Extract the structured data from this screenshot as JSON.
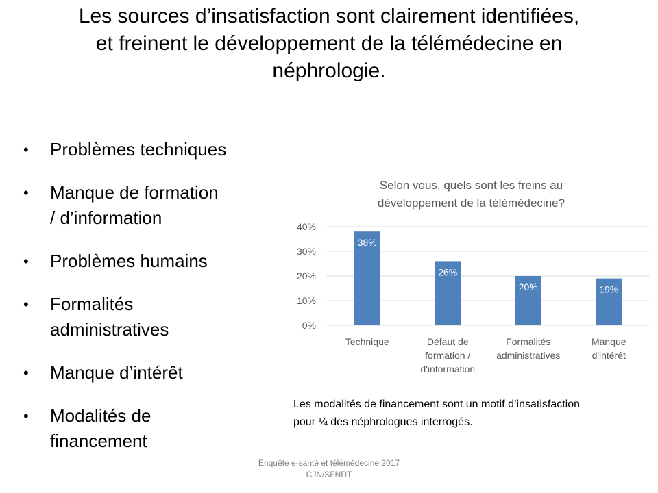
{
  "slide": {
    "title_lines": [
      "Les sources d’insatisfaction sont clairement identifiées,",
      "et freinent le développement de la télémédecine en",
      "néphrologie."
    ],
    "bullets": [
      {
        "lines": [
          "Problèmes techniques"
        ]
      },
      {
        "lines": [
          "Manque de formation",
          "/ d’information"
        ]
      },
      {
        "lines": [
          "Problèmes humains"
        ]
      },
      {
        "lines": [
          "Formalités",
          "administratives"
        ]
      },
      {
        "lines": [
          "Manque d’intérêt"
        ]
      },
      {
        "lines": [
          "Modalités de",
          "financement"
        ]
      }
    ],
    "note_lines": [
      "Les modalités de financement sont un motif d’insatisfaction",
      "pour ¼ des néphrologues interrogés."
    ],
    "footer_lines": [
      "Enquête e-santé et télémédecine 2017",
      "CJN/SFNDT"
    ]
  },
  "chart_data": {
    "type": "bar",
    "title_lines": [
      "Selon vous, quels sont les freins au",
      "développement de la télémédecine?"
    ],
    "categories": [
      {
        "lines": [
          "Technique"
        ]
      },
      {
        "lines": [
          "Défaut de",
          "formation /",
          "d'information"
        ]
      },
      {
        "lines": [
          "Formalités",
          "administratives"
        ]
      },
      {
        "lines": [
          "Manque",
          "d'intérêt"
        ]
      }
    ],
    "values": [
      38,
      26,
      20,
      19
    ],
    "data_labels": [
      "38%",
      "26%",
      "20%",
      "19%"
    ],
    "yticks": [
      0,
      10,
      20,
      30,
      40
    ],
    "ytick_labels": [
      "0%",
      "10%",
      "20%",
      "30%",
      "40%"
    ],
    "ylim": [
      0,
      40
    ],
    "grid": true,
    "legend": "none",
    "colors": {
      "bar": "#4f81bd",
      "grid": "#d9d9d9",
      "axis_text": "#595959",
      "data_label": "#ffffff"
    }
  }
}
